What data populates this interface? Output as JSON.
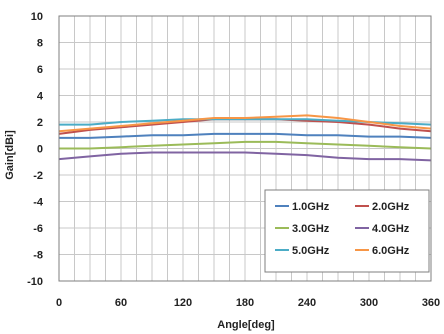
{
  "chart_data": {
    "type": "line",
    "xlabel": "Angle[deg]",
    "ylabel": "Gain[dBi]",
    "xlim": [
      0,
      360
    ],
    "ylim": [
      -10,
      10
    ],
    "xticks": [
      0,
      60,
      120,
      180,
      240,
      300,
      360
    ],
    "yticks": [
      10,
      8,
      6,
      4,
      2,
      0,
      -2,
      -4,
      -6,
      -8,
      -10
    ],
    "x_minor_step": 15,
    "grid": true,
    "legend_position": "bottom-right",
    "x": [
      0,
      30,
      60,
      90,
      120,
      150,
      180,
      210,
      240,
      270,
      300,
      330,
      360
    ],
    "series": [
      {
        "name": "1.0GHz",
        "color": "#4f81bd",
        "values": [
          0.8,
          0.8,
          0.9,
          1.0,
          1.0,
          1.1,
          1.1,
          1.1,
          1.0,
          1.0,
          0.9,
          0.9,
          0.8
        ]
      },
      {
        "name": "2.0GHz",
        "color": "#c0504d",
        "values": [
          1.1,
          1.4,
          1.6,
          1.8,
          2.0,
          2.2,
          2.2,
          2.2,
          2.1,
          2.0,
          1.8,
          1.5,
          1.3
        ]
      },
      {
        "name": "3.0GHz",
        "color": "#9bbb59",
        "values": [
          0.0,
          0.0,
          0.1,
          0.2,
          0.3,
          0.4,
          0.5,
          0.5,
          0.4,
          0.3,
          0.2,
          0.1,
          0.0
        ]
      },
      {
        "name": "4.0GHz",
        "color": "#8064a2",
        "values": [
          -0.8,
          -0.6,
          -0.4,
          -0.3,
          -0.3,
          -0.3,
          -0.3,
          -0.4,
          -0.5,
          -0.7,
          -0.8,
          -0.8,
          -0.9
        ]
      },
      {
        "name": "5.0GHz",
        "color": "#4bacc6",
        "values": [
          1.8,
          1.8,
          2.0,
          2.1,
          2.2,
          2.2,
          2.2,
          2.2,
          2.2,
          2.1,
          2.0,
          1.9,
          1.8
        ]
      },
      {
        "name": "6.0GHz",
        "color": "#f79646",
        "values": [
          1.3,
          1.5,
          1.7,
          1.9,
          2.1,
          2.3,
          2.3,
          2.4,
          2.5,
          2.3,
          2.0,
          1.7,
          1.5
        ]
      }
    ]
  }
}
